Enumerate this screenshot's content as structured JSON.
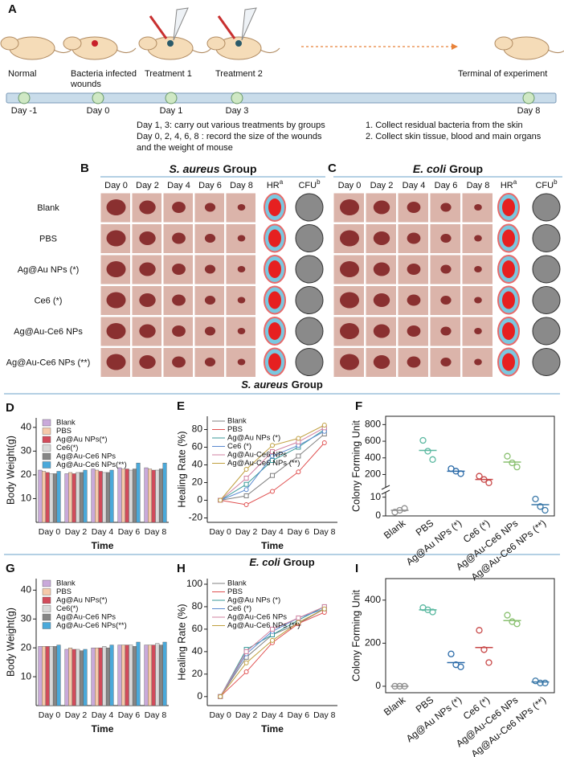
{
  "panel_a": {
    "label": "A",
    "stages": [
      [
        "Normal"
      ],
      [
        "Bacteria infected",
        "wounds"
      ],
      [
        "Treatment 1"
      ],
      [
        "Treatment 2"
      ],
      [
        "Terminal of experiment"
      ]
    ],
    "days": [
      "Day -1",
      "Day 0",
      "Day 1",
      "Day 3",
      "Day 8"
    ],
    "notes_left": [
      "Day 1, 3: carry out various treatments by groups",
      "Day 0, 2, 4, 6, 8 : record the size of the wounds",
      "and the weight of mouse"
    ],
    "notes_right": [
      "1. Collect residual bacteria from the skin",
      "2. Collect skin tissue, blood and main organs"
    ]
  },
  "row_labels": [
    "Blank",
    "PBS",
    "Ag@Au NPs (*)",
    "Ce6 (*)",
    "Ag@Au-Ce6 NPs",
    "Ag@Au-Ce6 NPs (**)"
  ],
  "panel_b": {
    "label": "B",
    "title": {
      "italic": "S. aureus",
      "rest": "Group"
    },
    "days": [
      "Day 0",
      "Day 2",
      "Day 4",
      "Day 6",
      "Day 8"
    ],
    "hr": {
      "text": "HR",
      "sup": "a"
    },
    "cfu": {
      "text": "CFU",
      "sup": "b"
    }
  },
  "panel_c": {
    "label": "C",
    "title": {
      "italic": "E. coli",
      "rest": "Group"
    },
    "days": [
      "Day 0",
      "Day 2",
      "Day 4",
      "Day 6",
      "Day 8"
    ],
    "hr": {
      "text": "HR",
      "sup": "a"
    },
    "cfu": {
      "text": "CFU",
      "sup": "b"
    }
  },
  "sections": [
    {
      "italic": "S. aureus",
      "rest": "Group"
    },
    {
      "italic": "E. coli",
      "rest": "Group"
    }
  ],
  "chart_data": [
    {
      "panel": "D",
      "type": "bar",
      "ylabel": "Body Weight(g)",
      "xlabel": "Time",
      "categories": [
        "Day 0",
        "Day 2",
        "Day 4",
        "Day 6",
        "Day 8"
      ],
      "ylim": [
        0,
        44
      ],
      "yticks": [
        10,
        20,
        30,
        40
      ],
      "legend": "upper left",
      "series": [
        {
          "name": "Blank",
          "color": "#c9a9da",
          "values": [
            22,
            20.5,
            22.5,
            23,
            23
          ]
        },
        {
          "name": "PBS",
          "color": "#f6c9aa",
          "values": [
            21.5,
            21,
            22,
            22.5,
            22.5
          ]
        },
        {
          "name": "Ag@Au NPs(*)",
          "color": "#d24b5b",
          "values": [
            21,
            20.5,
            21.5,
            22.5,
            22
          ]
        },
        {
          "name": "Ce6(*)",
          "color": "#d9d9d9",
          "values": [
            20.5,
            21,
            21,
            22,
            22
          ]
        },
        {
          "name": "Ag@Au-Ce6 NPs",
          "color": "#858585",
          "values": [
            20.5,
            21,
            21,
            22.5,
            22.5
          ]
        },
        {
          "name": "Ag@Au-Ce6 NPs(**)",
          "color": "#4aa9da",
          "values": [
            21.5,
            22,
            22,
            25,
            25
          ]
        }
      ]
    },
    {
      "panel": "E",
      "type": "line",
      "ylabel": "Healing Rate (%)",
      "xlabel": "Time",
      "categories": [
        "Day 0",
        "Day 2",
        "Day 4",
        "Day 6",
        "Day 8"
      ],
      "ylim": [
        -25,
        95
      ],
      "yticks": [
        -20,
        0,
        20,
        40,
        60,
        80
      ],
      "legend": "upper left",
      "series": [
        {
          "name": "Blank",
          "color": "#808080",
          "values": [
            0,
            5,
            28,
            50,
            75
          ]
        },
        {
          "name": "PBS",
          "color": "#e05050",
          "values": [
            0,
            -5,
            10,
            32,
            65
          ]
        },
        {
          "name": "Ag@Au NPs (*)",
          "color": "#3a9a9a",
          "values": [
            0,
            18,
            45,
            60,
            80
          ]
        },
        {
          "name": "Ce6 (*)",
          "color": "#5a8ad0",
          "values": [
            0,
            12,
            50,
            62,
            78
          ]
        },
        {
          "name": "Ag@Au-Ce6 NPs",
          "color": "#d080a0",
          "values": [
            0,
            25,
            55,
            66,
            82
          ]
        },
        {
          "name": "Ag@Au-Ce6 NPs (**)",
          "color": "#c0a040",
          "values": [
            0,
            35,
            62,
            70,
            85
          ]
        }
      ]
    },
    {
      "panel": "F",
      "type": "scatter",
      "ylabel": "Colony Forming Unit",
      "categories": [
        "Blank",
        "PBS",
        "Ag@Au NPs (*)",
        "Ce6 (*)",
        "Ag@Au-Ce6 NPs",
        "Ag@Au-Ce6 NPs (**)"
      ],
      "colors": [
        "#909090",
        "#5ab8a0",
        "#2a6aa8",
        "#c84848",
        "#8ac070",
        "#3a78a8"
      ],
      "values": [
        3,
        490,
        240,
        140,
        350,
        6
      ],
      "points": [
        [
          2,
          3,
          4
        ],
        [
          610,
          480,
          380
        ],
        [
          270,
          240,
          210
        ],
        [
          180,
          140,
          100
        ],
        [
          420,
          340,
          290
        ],
        [
          9,
          5,
          3
        ]
      ],
      "ylim": [
        0,
        900
      ],
      "ybreak": [
        12,
        50
      ],
      "yticks": [
        0,
        10,
        200,
        400,
        600,
        800
      ]
    },
    {
      "panel": "G",
      "type": "bar",
      "ylabel": "Body Weight(g)",
      "xlabel": "Time",
      "categories": [
        "Day 0",
        "Day 2",
        "Day 4",
        "Day 6",
        "Day 8"
      ],
      "ylim": [
        0,
        44
      ],
      "yticks": [
        10,
        20,
        30,
        40
      ],
      "legend": "upper left",
      "series": [
        {
          "name": "Blank",
          "color": "#c9a9da",
          "values": [
            20.5,
            19.5,
            20,
            21,
            21
          ]
        },
        {
          "name": "PBS",
          "color": "#f6c9aa",
          "values": [
            20.5,
            20,
            20,
            21,
            21
          ]
        },
        {
          "name": "Ag@Au NPs(*)",
          "color": "#d24b5b",
          "values": [
            20.5,
            19.5,
            20,
            21,
            21
          ]
        },
        {
          "name": "Ce6(*)",
          "color": "#d9d9d9",
          "values": [
            20.5,
            19.5,
            20.5,
            21,
            21.5
          ]
        },
        {
          "name": "Ag@Au-Ce6 NPs",
          "color": "#858585",
          "values": [
            20.5,
            19,
            20,
            20.5,
            21
          ]
        },
        {
          "name": "Ag@Au-Ce6 NPs(**)",
          "color": "#4aa9da",
          "values": [
            21,
            19.5,
            21,
            22,
            22
          ]
        }
      ]
    },
    {
      "panel": "H",
      "type": "line",
      "ylabel": "Healing Rate (%)",
      "xlabel": "Time",
      "categories": [
        "Day 0",
        "Day 2",
        "Day 4",
        "Day 6",
        "Day 8"
      ],
      "ylim": [
        -8,
        105
      ],
      "yticks": [
        0,
        20,
        40,
        60,
        80,
        100
      ],
      "legend": "upper left",
      "series": [
        {
          "name": "Blank",
          "color": "#808080",
          "values": [
            0,
            35,
            55,
            65,
            78
          ]
        },
        {
          "name": "PBS",
          "color": "#e05050",
          "values": [
            0,
            22,
            48,
            65,
            75
          ]
        },
        {
          "name": "Ag@Au NPs (*)",
          "color": "#3a9a9a",
          "values": [
            0,
            42,
            55,
            68,
            80
          ]
        },
        {
          "name": "Ce6 (*)",
          "color": "#5a8ad0",
          "values": [
            0,
            38,
            58,
            70,
            78
          ]
        },
        {
          "name": "Ag@Au-Ce6 NPs",
          "color": "#d080a0",
          "values": [
            0,
            40,
            60,
            70,
            80
          ]
        },
        {
          "name": "Ag@Au-Ce6 NPs (**)",
          "color": "#c0a040",
          "values": [
            0,
            30,
            50,
            66,
            78
          ]
        }
      ]
    },
    {
      "panel": "I",
      "type": "scatter",
      "ylabel": "Colony Forming Unit",
      "categories": [
        "Blank",
        "PBS",
        "Ag@Au NPs (*)",
        "Ce6 (*)",
        "Ag@Au-Ce6 NPs",
        "Ag@Au-Ce6 NPs (**)"
      ],
      "colors": [
        "#909090",
        "#5ab8a0",
        "#2a6aa8",
        "#c84848",
        "#8ac070",
        "#3a78a8"
      ],
      "values": [
        0,
        355,
        110,
        180,
        305,
        20
      ],
      "points": [
        [
          0,
          0,
          0
        ],
        [
          365,
          355,
          345
        ],
        [
          150,
          100,
          90
        ],
        [
          260,
          170,
          110
        ],
        [
          330,
          300,
          290
        ],
        [
          25,
          15,
          15
        ]
      ],
      "ylim": [
        -30,
        500
      ],
      "yticks": [
        0,
        200,
        400
      ]
    }
  ]
}
